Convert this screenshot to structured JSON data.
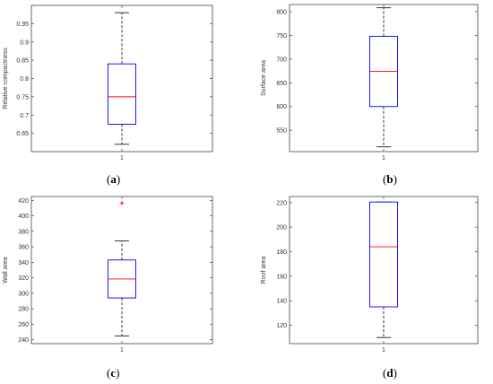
{
  "chart_data": [
    {
      "type": "box",
      "panel_label": "a",
      "ylabel": "Relative compactness",
      "categories": [
        "1"
      ],
      "ylim": [
        0.6,
        1.0
      ],
      "yticks": [
        0.65,
        0.7,
        0.75,
        0.8,
        0.85,
        0.9,
        0.95
      ],
      "ytick_labels": [
        "0.65",
        "0.7",
        "0.75",
        "0.8",
        "0.85",
        "0.9",
        "0.95"
      ],
      "box": {
        "whisker_low": 0.62,
        "q1": 0.675,
        "median": 0.75,
        "q3": 0.84,
        "whisker_high": 0.98,
        "outliers": []
      }
    },
    {
      "type": "box",
      "panel_label": "b",
      "ylabel": "Surface area",
      "categories": [
        "1"
      ],
      "ylim": [
        505,
        815
      ],
      "yticks": [
        550,
        600,
        650,
        700,
        750,
        800
      ],
      "ytick_labels": [
        "550",
        "600",
        "650",
        "700",
        "750",
        "800"
      ],
      "box": {
        "whisker_low": 515,
        "q1": 600,
        "median": 674,
        "q3": 748,
        "whisker_high": 808,
        "outliers": []
      }
    },
    {
      "type": "box",
      "panel_label": "c",
      "ylabel": "Wall area",
      "categories": [
        "1"
      ],
      "ylim": [
        235,
        425
      ],
      "yticks": [
        240,
        260,
        280,
        300,
        320,
        340,
        360,
        380,
        400,
        420
      ],
      "ytick_labels": [
        "240",
        "260",
        "280",
        "300",
        "320",
        "340",
        "360",
        "380",
        "400",
        "420"
      ],
      "box": {
        "whisker_low": 245,
        "q1": 294,
        "median": 318.5,
        "q3": 343,
        "whisker_high": 367.5,
        "outliers": [
          416.5
        ]
      }
    },
    {
      "type": "box",
      "panel_label": "d",
      "ylabel": "Roof area",
      "categories": [
        "1"
      ],
      "ylim": [
        105,
        225
      ],
      "yticks": [
        120,
        140,
        160,
        180,
        200,
        220
      ],
      "ytick_labels": [
        "120",
        "140",
        "160",
        "180",
        "200",
        "220"
      ],
      "box": {
        "whisker_low": 110,
        "q1": 135,
        "median": 184,
        "q3": 220.5,
        "whisker_high": 220.5,
        "outliers": []
      }
    }
  ],
  "captions": [
    {
      "open": "(",
      "label": "a",
      "close": ")"
    },
    {
      "open": "(",
      "label": "b",
      "close": ")"
    },
    {
      "open": "(",
      "label": "c",
      "close": ")"
    },
    {
      "open": "(",
      "label": "d",
      "close": ")"
    }
  ],
  "colors": {
    "box": "#0000ff",
    "median": "#ff0000",
    "whisker": "#000000",
    "outlier": "#ff0000",
    "axes": "#444444"
  }
}
